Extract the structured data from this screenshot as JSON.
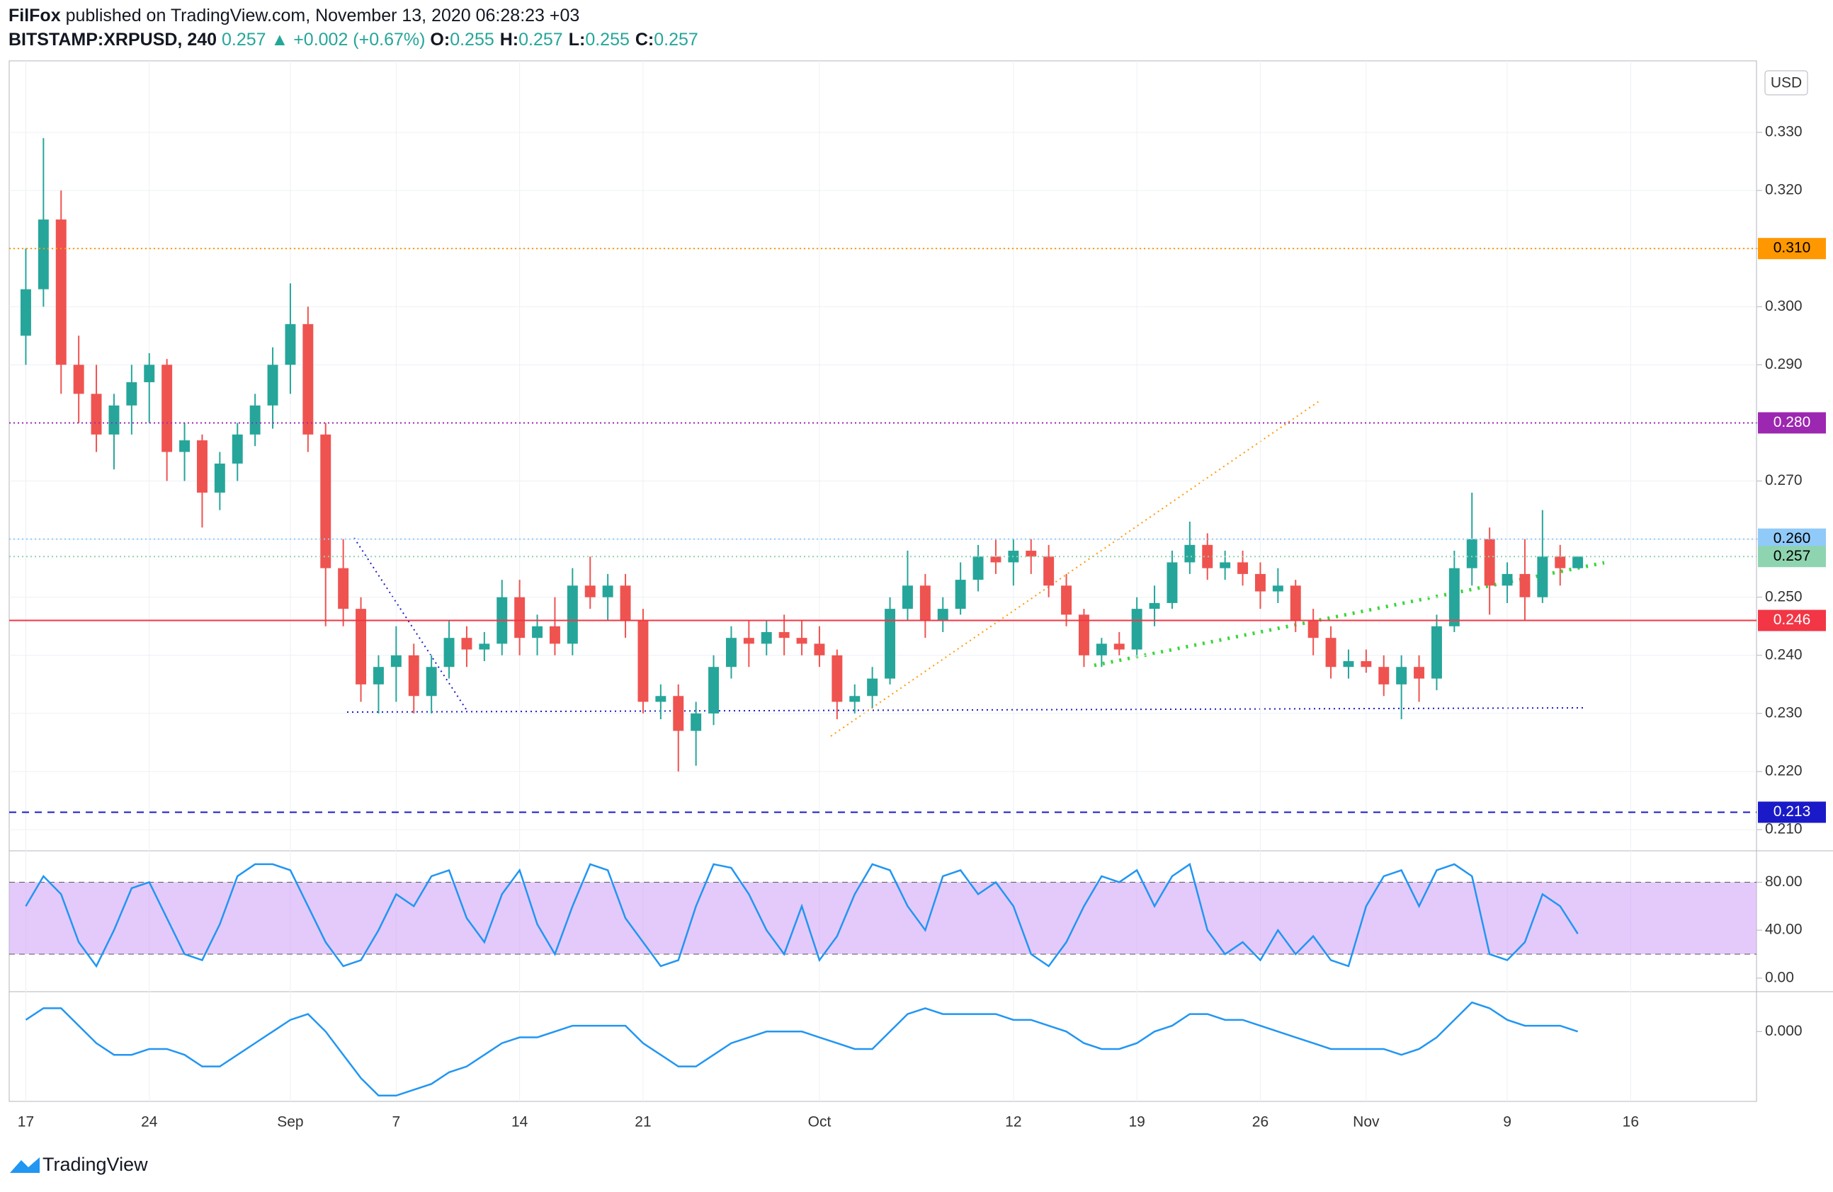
{
  "header": {
    "publisher": "FilFox",
    "published": "published on TradingView.com, November 13, 2020 06:28:23 +03",
    "symbol": "BITSTAMP:XRPUSD, 240",
    "last": "0.257",
    "arrow": "▲",
    "change": "+0.002 (+0.67%)",
    "ohlc": [
      {
        "label": "O:",
        "value": "0.255"
      },
      {
        "label": "H:",
        "value": "0.257"
      },
      {
        "label": "L:",
        "value": "0.255"
      },
      {
        "label": "C:",
        "value": "0.257"
      }
    ]
  },
  "chart_data": [
    {
      "type": "candlestick",
      "currency": "USD",
      "grid": true,
      "up_color": "#26a69a",
      "down_color": "#ef5350",
      "categories": [
        "17",
        null,
        null,
        null,
        null,
        null,
        null,
        "24",
        null,
        null,
        null,
        null,
        null,
        null,
        null,
        "Sep",
        null,
        null,
        null,
        null,
        null,
        "7",
        null,
        null,
        null,
        null,
        null,
        null,
        "14",
        null,
        null,
        null,
        null,
        null,
        null,
        "21",
        null,
        null,
        null,
        null,
        null,
        null,
        null,
        null,
        null,
        "Oct",
        null,
        null,
        null,
        null,
        null,
        null,
        null,
        null,
        null,
        null,
        "12",
        null,
        null,
        null,
        null,
        null,
        null,
        "19",
        null,
        null,
        null,
        null,
        null,
        null,
        "26",
        null,
        null,
        null,
        null,
        null,
        "Nov",
        null,
        null,
        null,
        null,
        null,
        null,
        null,
        "9",
        null,
        null,
        null,
        null,
        null,
        null,
        "16",
        null,
        null,
        null,
        null
      ],
      "open": [
        0.295,
        0.303,
        0.315,
        0.29,
        0.285,
        0.278,
        0.283,
        0.287,
        0.29,
        0.275,
        0.277,
        0.268,
        0.273,
        0.278,
        0.283,
        0.29,
        0.297,
        0.278,
        0.255,
        0.248,
        0.235,
        0.238,
        0.24,
        0.233,
        0.238,
        0.243,
        0.241,
        0.242,
        0.25,
        0.243,
        0.245,
        0.242,
        0.252,
        0.25,
        0.252,
        0.246,
        0.232,
        0.233,
        0.227,
        0.23,
        0.238,
        0.243,
        0.242,
        0.244,
        0.243,
        0.242,
        0.24,
        0.232,
        0.233,
        0.236,
        0.248,
        0.252,
        0.246,
        0.248,
        0.253,
        0.257,
        0.256,
        0.258,
        0.257,
        0.252,
        0.247,
        0.24,
        0.242,
        0.241,
        0.248,
        0.249,
        0.256,
        0.259,
        0.255,
        0.256,
        0.254,
        0.251,
        0.252,
        0.246,
        0.243,
        0.238,
        0.239,
        0.238,
        0.235,
        0.238,
        0.236,
        0.245,
        0.255,
        0.26,
        0.252,
        0.254,
        0.25,
        0.257,
        0.255,
        null,
        null,
        null,
        null,
        null,
        null,
        null
      ],
      "high": [
        0.31,
        0.329,
        0.32,
        0.295,
        0.29,
        0.285,
        0.29,
        0.292,
        0.291,
        0.28,
        0.278,
        0.275,
        0.28,
        0.285,
        0.293,
        0.304,
        0.3,
        0.28,
        0.26,
        0.25,
        0.24,
        0.245,
        0.242,
        0.24,
        0.246,
        0.245,
        0.244,
        0.253,
        0.253,
        0.247,
        0.25,
        0.255,
        0.257,
        0.254,
        0.254,
        0.248,
        0.235,
        0.235,
        0.232,
        0.24,
        0.245,
        0.246,
        0.246,
        0.247,
        0.246,
        0.245,
        0.241,
        0.235,
        0.238,
        0.25,
        0.258,
        0.254,
        0.25,
        0.256,
        0.259,
        0.26,
        0.26,
        0.26,
        0.259,
        0.254,
        0.248,
        0.243,
        0.244,
        0.25,
        0.252,
        0.258,
        0.263,
        0.261,
        0.258,
        0.258,
        0.256,
        0.255,
        0.253,
        0.248,
        0.245,
        0.241,
        0.241,
        0.24,
        0.24,
        0.24,
        0.247,
        0.258,
        0.268,
        0.262,
        0.256,
        0.26,
        0.265,
        0.259,
        0.257,
        null,
        null,
        null,
        null,
        null,
        null,
        null
      ],
      "low": [
        0.29,
        0.3,
        0.285,
        0.28,
        0.275,
        0.272,
        0.278,
        0.28,
        0.27,
        0.27,
        0.262,
        0.265,
        0.27,
        0.276,
        0.279,
        0.285,
        0.275,
        0.245,
        0.245,
        0.232,
        0.23,
        0.232,
        0.23,
        0.23,
        0.236,
        0.238,
        0.239,
        0.24,
        0.24,
        0.24,
        0.24,
        0.24,
        0.248,
        0.246,
        0.243,
        0.23,
        0.229,
        0.22,
        0.221,
        0.228,
        0.236,
        0.238,
        0.24,
        0.24,
        0.24,
        0.238,
        0.229,
        0.23,
        0.231,
        0.235,
        0.246,
        0.243,
        0.244,
        0.247,
        0.251,
        0.254,
        0.252,
        0.254,
        0.25,
        0.245,
        0.238,
        0.238,
        0.24,
        0.24,
        0.245,
        0.248,
        0.254,
        0.253,
        0.253,
        0.252,
        0.248,
        0.249,
        0.244,
        0.24,
        0.236,
        0.236,
        0.237,
        0.233,
        0.229,
        0.232,
        0.234,
        0.244,
        0.252,
        0.247,
        0.249,
        0.246,
        0.249,
        0.252,
        0.255,
        null,
        null,
        null,
        null,
        null,
        null,
        null
      ],
      "close": [
        0.303,
        0.315,
        0.29,
        0.285,
        0.278,
        0.283,
        0.287,
        0.29,
        0.275,
        0.277,
        0.268,
        0.273,
        0.278,
        0.283,
        0.29,
        0.297,
        0.278,
        0.255,
        0.248,
        0.235,
        0.238,
        0.24,
        0.233,
        0.238,
        0.243,
        0.241,
        0.242,
        0.25,
        0.243,
        0.245,
        0.242,
        0.252,
        0.25,
        0.252,
        0.246,
        0.232,
        0.233,
        0.227,
        0.23,
        0.238,
        0.243,
        0.242,
        0.244,
        0.243,
        0.242,
        0.24,
        0.232,
        0.233,
        0.236,
        0.248,
        0.252,
        0.246,
        0.248,
        0.253,
        0.257,
        0.256,
        0.258,
        0.257,
        0.252,
        0.247,
        0.24,
        0.242,
        0.241,
        0.248,
        0.249,
        0.256,
        0.259,
        0.255,
        0.256,
        0.254,
        0.251,
        0.252,
        0.246,
        0.243,
        0.238,
        0.239,
        0.238,
        0.235,
        0.238,
        0.236,
        0.245,
        0.255,
        0.26,
        0.252,
        0.254,
        0.25,
        0.257,
        0.255,
        0.257,
        null,
        null,
        null,
        null,
        null,
        null,
        null
      ],
      "ylim": [
        0.2066,
        0.3423
      ],
      "yticks": [
        {
          "value": 0.21,
          "label": "0.210"
        },
        {
          "value": 0.22,
          "label": "0.220"
        },
        {
          "value": 0.23,
          "label": "0.230"
        },
        {
          "value": 0.24,
          "label": "0.240"
        },
        {
          "value": 0.25,
          "label": "0.250"
        },
        {
          "value": 0.26,
          "label": "0.260"
        },
        {
          "value": 0.27,
          "label": "0.270"
        },
        {
          "value": 0.28,
          "label": "0.280"
        },
        {
          "value": 0.29,
          "label": "0.290"
        },
        {
          "value": 0.3,
          "label": "0.300"
        },
        {
          "value": 0.31,
          "label": "0.310"
        },
        {
          "value": 0.32,
          "label": "0.320"
        },
        {
          "value": 0.33,
          "label": "0.330"
        }
      ],
      "levels": [
        {
          "value": 0.31,
          "label": "0.310",
          "color": "#ff9800",
          "text_color": "#000000",
          "dash": "2 4"
        },
        {
          "value": 0.28,
          "label": "0.280",
          "color": "#9c27b0",
          "text_color": "#ffffff",
          "dash": "2 4"
        },
        {
          "value": 0.26,
          "label": "0.260",
          "color": "#90caf9",
          "text_color": "#000000",
          "dash": "2 4"
        },
        {
          "value": 0.257,
          "label": "0.257",
          "color": "#8fd4b0",
          "text_color": "#000000",
          "dash": "2 4"
        },
        {
          "value": 0.246,
          "label": "0.246",
          "color": "#f23645",
          "text_color": "#ffffff",
          "dash": "none"
        },
        {
          "value": 0.213,
          "label": "0.213",
          "color": "#1a1ac8",
          "text_color": "#ffffff",
          "dash": "10 8"
        }
      ]
    },
    {
      "type": "line",
      "color": "#2196f3",
      "band": [
        20,
        80
      ],
      "band_color": "#ce9ff5",
      "values": [
        60,
        85,
        70,
        30,
        10,
        40,
        75,
        80,
        50,
        20,
        15,
        45,
        85,
        95,
        95,
        90,
        60,
        30,
        10,
        15,
        40,
        70,
        60,
        85,
        90,
        50,
        30,
        70,
        90,
        45,
        20,
        60,
        95,
        90,
        50,
        30,
        10,
        15,
        60,
        95,
        92,
        70,
        40,
        20,
        60,
        15,
        35,
        70,
        95,
        90,
        60,
        40,
        85,
        90,
        70,
        80,
        60,
        20,
        10,
        30,
        60,
        85,
        80,
        90,
        60,
        85,
        95,
        40,
        20,
        30,
        15,
        40,
        20,
        35,
        15,
        10,
        60,
        85,
        90,
        60,
        90,
        95,
        85,
        20,
        15,
        30,
        70,
        60,
        37,
        null,
        null,
        null,
        null,
        null,
        null,
        null
      ],
      "ylim": [
        -10.7,
        104.4
      ],
      "yticks": [
        {
          "value": 0,
          "label": "0.00"
        },
        {
          "value": 40,
          "label": "40.00"
        },
        {
          "value": 80,
          "label": "80.00"
        }
      ]
    },
    {
      "type": "line",
      "color": "#2196f3",
      "values": [
        0.002,
        0.004,
        0.004,
        0.001,
        -0.002,
        -0.004,
        -0.004,
        -0.003,
        -0.003,
        -0.004,
        -0.006,
        -0.006,
        -0.004,
        -0.002,
        0.0,
        0.002,
        0.003,
        0.0,
        -0.004,
        -0.008,
        -0.011,
        -0.011,
        -0.01,
        -0.009,
        -0.007,
        -0.006,
        -0.004,
        -0.002,
        -0.001,
        -0.001,
        0.0,
        0.001,
        0.001,
        0.001,
        0.001,
        -0.002,
        -0.004,
        -0.006,
        -0.006,
        -0.004,
        -0.002,
        -0.001,
        0.0,
        0.0,
        0.0,
        -0.001,
        -0.002,
        -0.003,
        -0.003,
        0.0,
        0.003,
        0.004,
        0.003,
        0.003,
        0.003,
        0.003,
        0.002,
        0.002,
        0.001,
        0.0,
        -0.002,
        -0.003,
        -0.003,
        -0.002,
        0.0,
        0.001,
        0.003,
        0.003,
        0.002,
        0.002,
        0.001,
        0.0,
        -0.001,
        -0.002,
        -0.003,
        -0.003,
        -0.003,
        -0.003,
        -0.004,
        -0.003,
        -0.001,
        0.002,
        0.005,
        0.004,
        0.002,
        0.001,
        0.001,
        0.001,
        0.0,
        null,
        null,
        null,
        null,
        null,
        null,
        null
      ],
      "ylim": [
        -0.012,
        0.0066
      ],
      "yticks": [
        {
          "value": 0,
          "label": "0.000"
        }
      ]
    }
  ],
  "footer": {
    "brand": "TradingView"
  }
}
